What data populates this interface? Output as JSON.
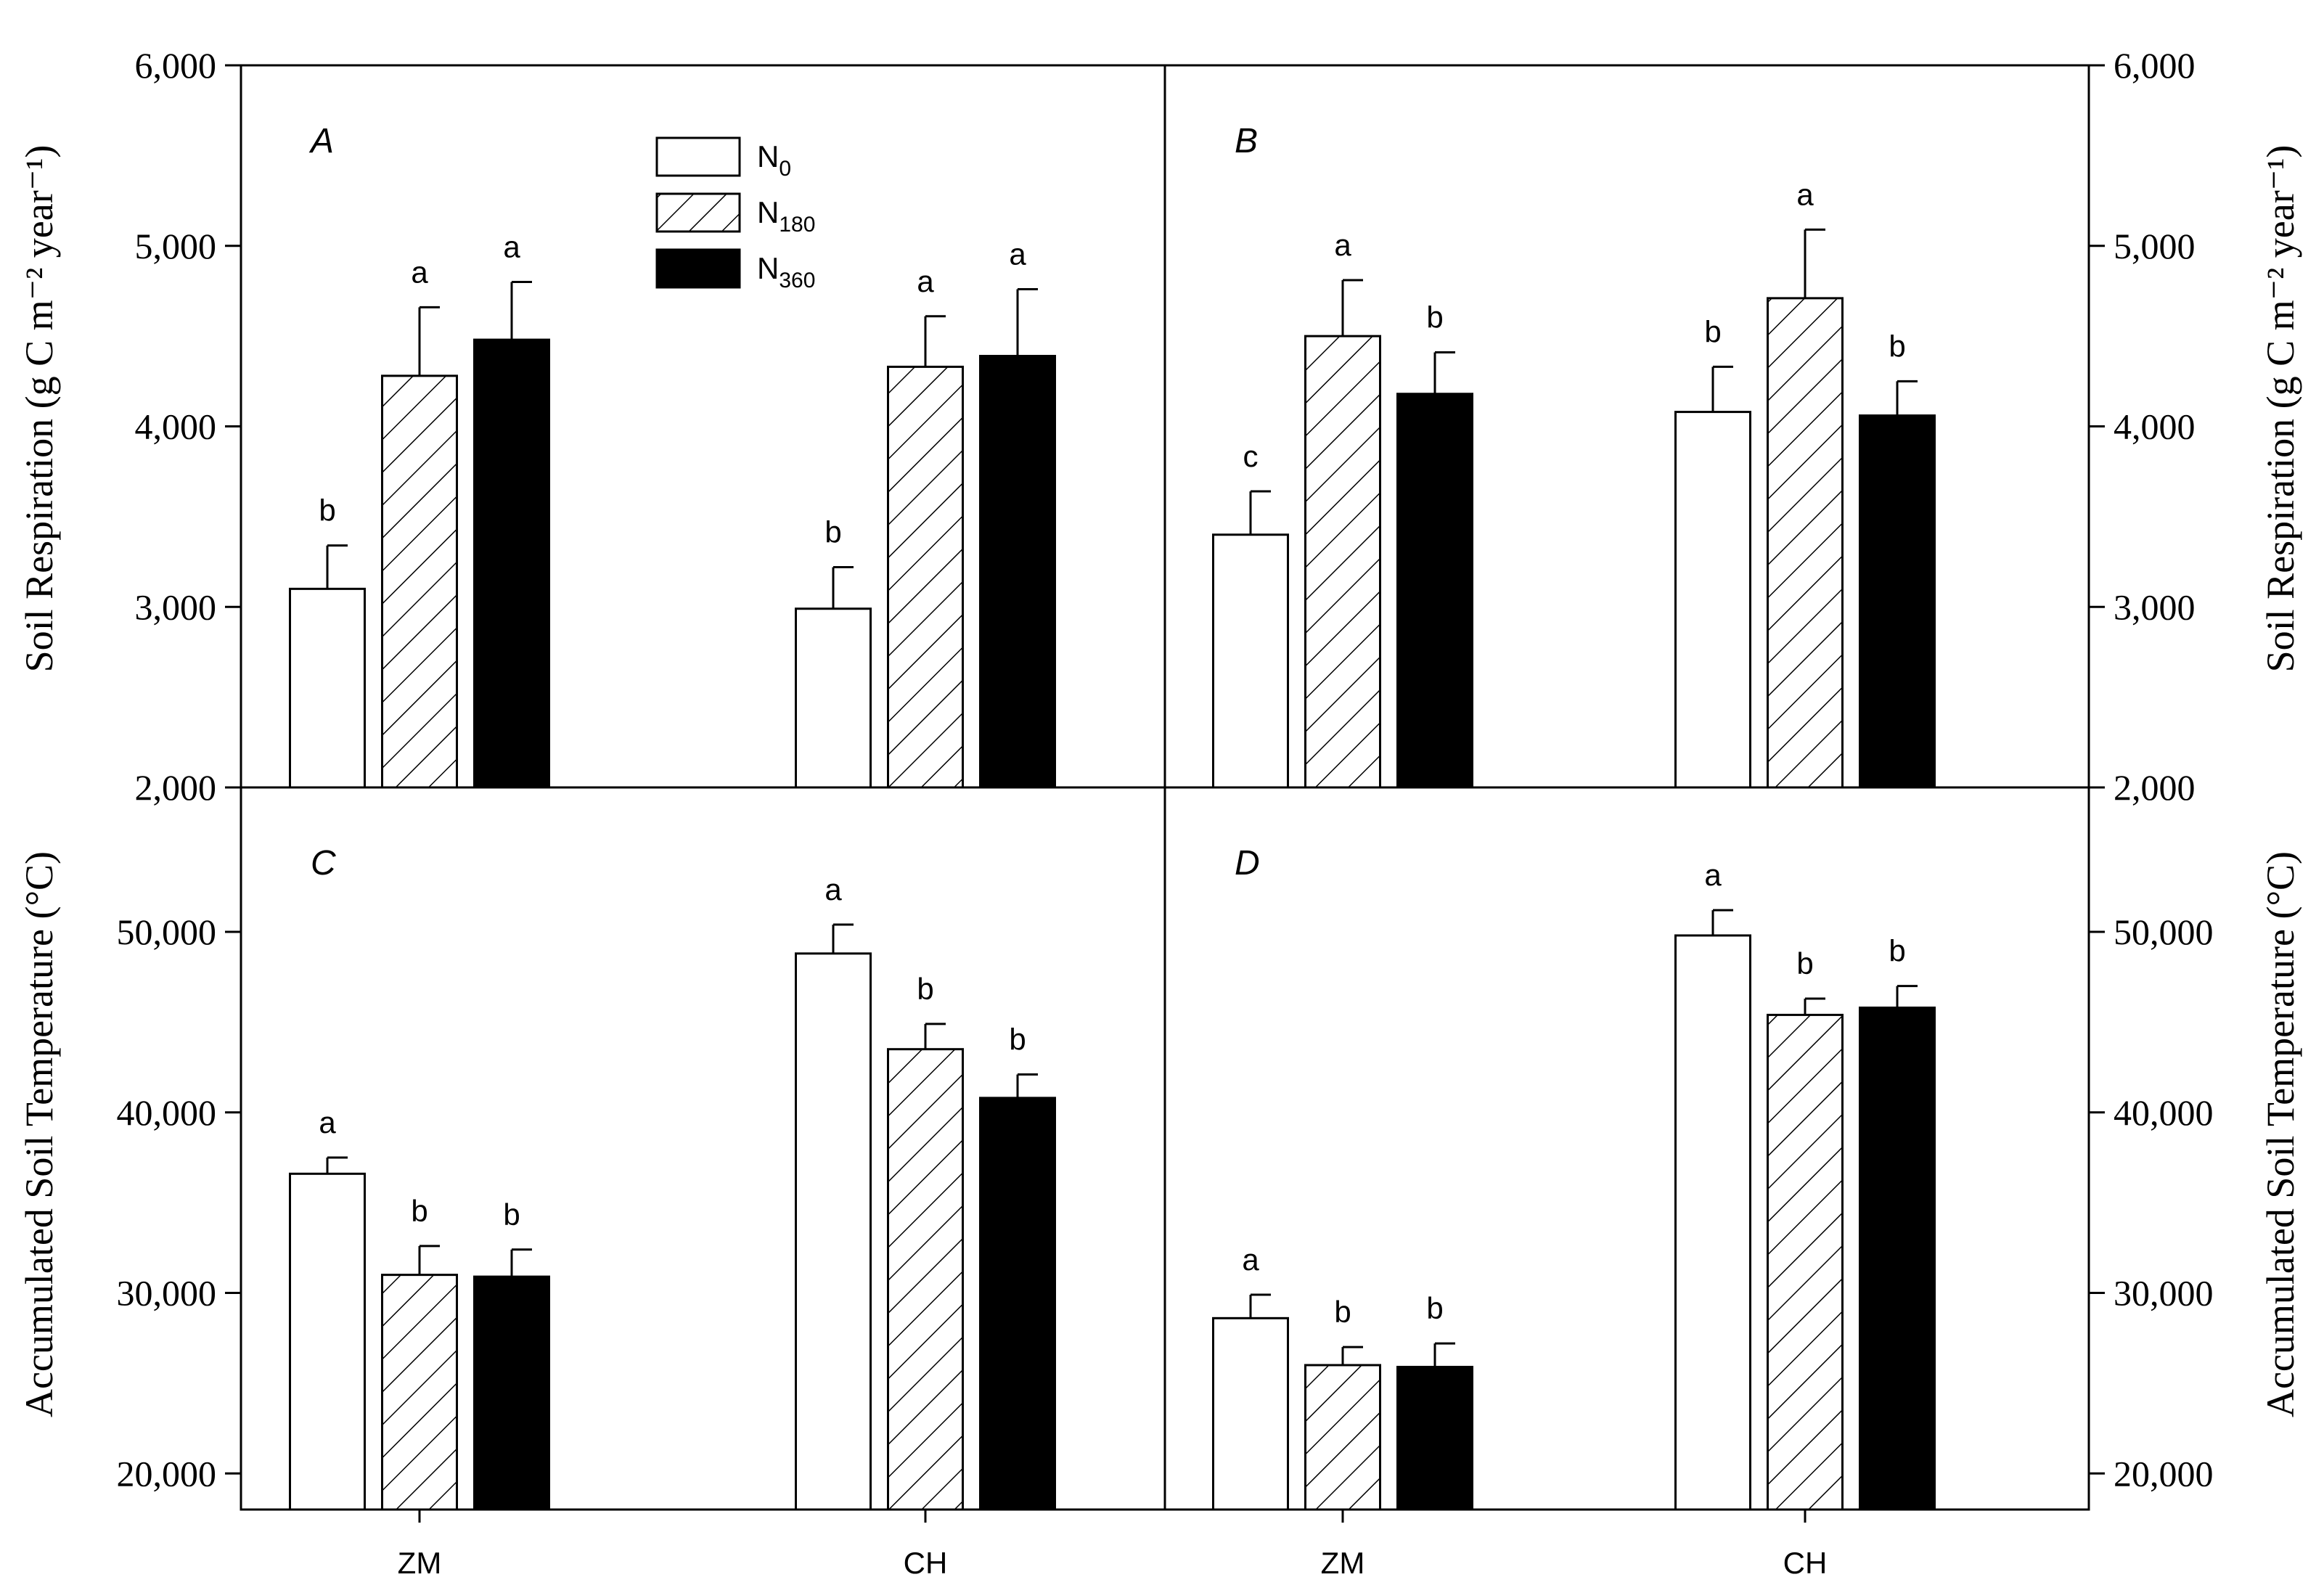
{
  "figure": {
    "left_axis_title_top": "Soil Respiration (g C m⁻² year⁻¹)",
    "right_axis_title_top": "Soil Respiration (g C m⁻² year⁻¹)",
    "left_axis_title_bottom": "Accumulated Soil Temperature (°C)",
    "right_axis_title_bottom": "Accumulated Soil Temperature (°C)",
    "legend": [
      {
        "key": "N0",
        "base": "N",
        "sub": "0",
        "fill": "white"
      },
      {
        "key": "N180",
        "base": "N",
        "sub": "180",
        "fill": "hatch"
      },
      {
        "key": "N360",
        "base": "N",
        "sub": "360",
        "fill": "black"
      }
    ]
  },
  "chart_data": [
    {
      "panel": "A",
      "type": "bar",
      "categories": [
        "ZM",
        "CH"
      ],
      "ylabel": "Soil Respiration (g C m⁻² year⁻¹)",
      "ylim": [
        2000,
        6000
      ],
      "yticks": [
        2000,
        3000,
        4000,
        5000,
        6000
      ],
      "ytick_labels": [
        "2,000",
        "3,000",
        "4,000",
        "5,000",
        "6,000"
      ],
      "series": [
        {
          "name": "N0",
          "values": [
            3100,
            2990
          ],
          "errors": [
            240,
            230
          ],
          "letters": [
            "b",
            "b"
          ]
        },
        {
          "name": "N180",
          "values": [
            4280,
            4330
          ],
          "errors": [
            380,
            280
          ],
          "letters": [
            "a",
            "a"
          ]
        },
        {
          "name": "N360",
          "values": [
            4480,
            4390
          ],
          "errors": [
            320,
            370
          ],
          "letters": [
            "a",
            "a"
          ]
        }
      ]
    },
    {
      "panel": "B",
      "type": "bar",
      "categories": [
        "ZM",
        "CH"
      ],
      "ylabel": "Soil Respiration (g C m⁻² year⁻¹)",
      "ylim": [
        2000,
        6000
      ],
      "yticks": [
        2000,
        3000,
        4000,
        5000,
        6000
      ],
      "ytick_labels": [
        "2,000",
        "3,000",
        "4,000",
        "5,000",
        "6,000"
      ],
      "series": [
        {
          "name": "N0",
          "values": [
            3400,
            4080
          ],
          "errors": [
            240,
            250
          ],
          "letters": [
            "c",
            "b"
          ]
        },
        {
          "name": "N180",
          "values": [
            4500,
            4710
          ],
          "errors": [
            310,
            380
          ],
          "letters": [
            "a",
            "a"
          ]
        },
        {
          "name": "N360",
          "values": [
            4180,
            4060
          ],
          "errors": [
            230,
            190
          ],
          "letters": [
            "b",
            "b"
          ]
        }
      ]
    },
    {
      "panel": "C",
      "type": "bar",
      "categories": [
        "ZM",
        "CH"
      ],
      "ylabel": "Accumulated Soil Temperature (°C)",
      "ylim": [
        18000,
        58000
      ],
      "yticks": [
        20000,
        30000,
        40000,
        50000
      ],
      "ytick_labels": [
        "20,000",
        "30,000",
        "40,000",
        "50,000"
      ],
      "series": [
        {
          "name": "N0",
          "values": [
            36600,
            48800
          ],
          "errors": [
            900,
            1600
          ],
          "letters": [
            "a",
            "a"
          ]
        },
        {
          "name": "N180",
          "values": [
            31000,
            43500
          ],
          "errors": [
            1600,
            1400
          ],
          "letters": [
            "b",
            "b"
          ]
        },
        {
          "name": "N360",
          "values": [
            30900,
            40800
          ],
          "errors": [
            1500,
            1300
          ],
          "letters": [
            "b",
            "b"
          ]
        }
      ]
    },
    {
      "panel": "D",
      "type": "bar",
      "categories": [
        "ZM",
        "CH"
      ],
      "ylabel": "Accumulated Soil Temperature (°C)",
      "ylim": [
        18000,
        58000
      ],
      "yticks": [
        20000,
        30000,
        40000,
        50000
      ],
      "ytick_labels": [
        "20,000",
        "30,000",
        "40,000",
        "50,000"
      ],
      "series": [
        {
          "name": "N0",
          "values": [
            28600,
            49800
          ],
          "errors": [
            1300,
            1400
          ],
          "letters": [
            "a",
            "a"
          ]
        },
        {
          "name": "N180",
          "values": [
            26000,
            45400
          ],
          "errors": [
            1000,
            900
          ],
          "letters": [
            "b",
            "b"
          ]
        },
        {
          "name": "N360",
          "values": [
            25900,
            45800
          ],
          "errors": [
            1300,
            1200
          ],
          "letters": [
            "b",
            "b"
          ]
        }
      ]
    }
  ]
}
